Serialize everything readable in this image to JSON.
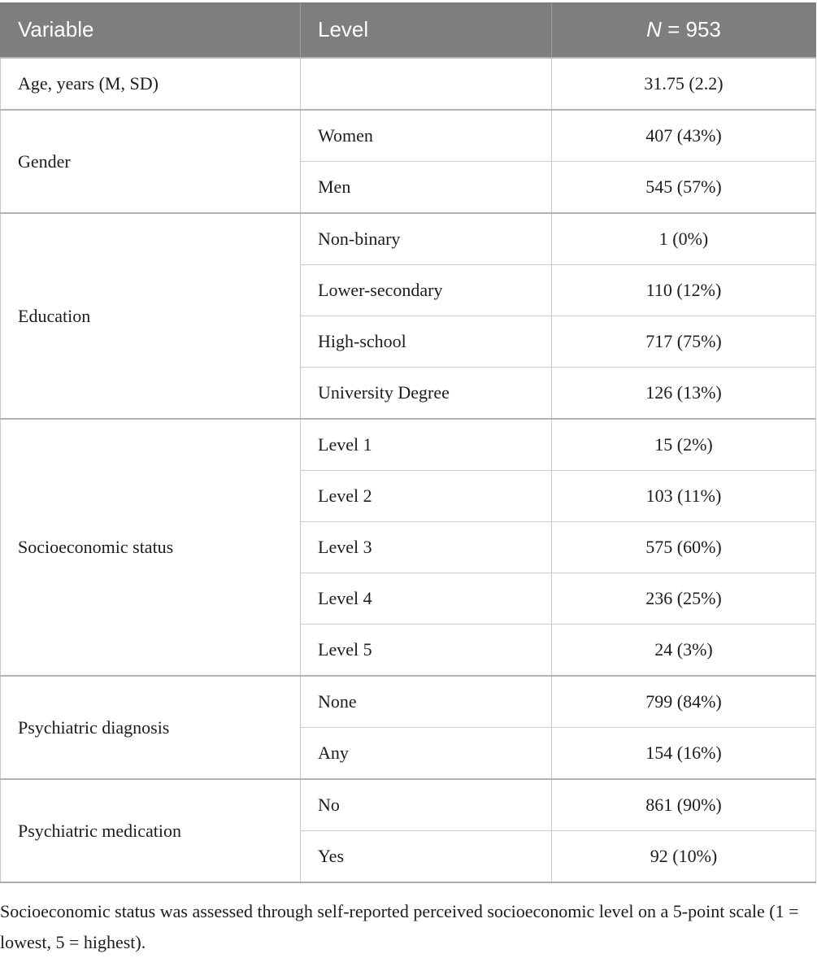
{
  "table": {
    "header": {
      "variable": "Variable",
      "level": "Level",
      "n_italic": "N",
      "n_rest": " = 953"
    },
    "groups": [
      {
        "variable": "Age, years (M, SD)",
        "rows": [
          {
            "level": "",
            "value": "31.75 (2.2)"
          }
        ]
      },
      {
        "variable": "Gender",
        "rows": [
          {
            "level": "Women",
            "value": "407 (43%)"
          },
          {
            "level": "Men",
            "value": "545 (57%)"
          }
        ]
      },
      {
        "variable": "Education",
        "rows": [
          {
            "level": "Non-binary",
            "value": "1 (0%)"
          },
          {
            "level": "Lower-secondary",
            "value": "110 (12%)"
          },
          {
            "level": "High-school",
            "value": "717 (75%)"
          },
          {
            "level": "University Degree",
            "value": "126 (13%)"
          }
        ]
      },
      {
        "variable": "Socioeconomic status",
        "rows": [
          {
            "level": "Level 1",
            "value": "15 (2%)"
          },
          {
            "level": "Level 2",
            "value": "103 (11%)"
          },
          {
            "level": "Level 3",
            "value": "575 (60%)"
          },
          {
            "level": "Level 4",
            "value": "236 (25%)"
          },
          {
            "level": "Level 5",
            "value": "24 (3%)"
          }
        ]
      },
      {
        "variable": "Psychiatric diagnosis",
        "rows": [
          {
            "level": "None",
            "value": "799 (84%)"
          },
          {
            "level": "Any",
            "value": "154 (16%)"
          }
        ]
      },
      {
        "variable": "Psychiatric medication",
        "rows": [
          {
            "level": "No",
            "value": "861 (90%)"
          },
          {
            "level": "Yes",
            "value": "92 (10%)"
          }
        ]
      }
    ]
  },
  "footnote": "Socioeconomic status was assessed through self-reported perceived socioeconomic level on a 5-point scale (1 = lowest, 5 = highest).",
  "colors": {
    "header_bg": "#7e7e7e",
    "header_text": "#ffffff",
    "header_divider": "#9d9d9d",
    "body_text": "#1c1c1c",
    "row_border": "#cfcfcf",
    "group_border": "#b3b3b3",
    "edge_border": "#c9c9c9",
    "bottom_border": "#ababab"
  }
}
